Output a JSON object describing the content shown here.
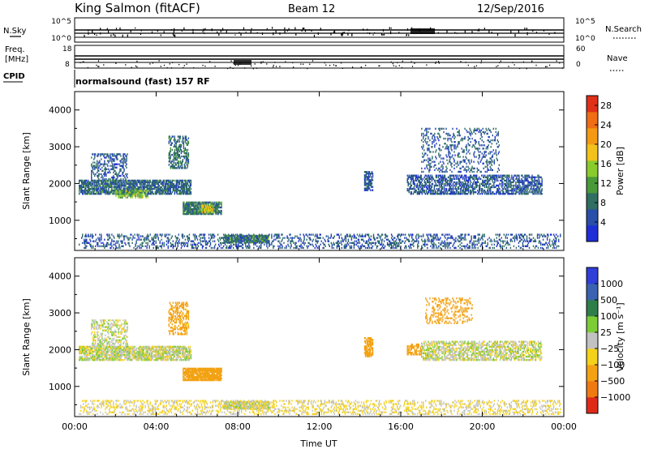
{
  "header": {
    "station": "King Salmon (fitACF)",
    "beam": "Beam 12",
    "date": "12/Sep/2016"
  },
  "left_labels": {
    "nsky": "N.Sky",
    "freq": "Freq.",
    "freq_unit": "[MHz]",
    "cpid": "CPID"
  },
  "right_labels": {
    "nsearch": "N.Search",
    "nave": "Nave"
  },
  "noise_axis": {
    "left_top": "10^5",
    "left_bottom": "10^0",
    "right_top": "10^5",
    "right_bottom": "10^0"
  },
  "freq_axis": {
    "left_top": "18",
    "left_bottom": "8",
    "right_top": "60",
    "right_bottom": "0"
  },
  "cpid_text": "normalsound (fast) 157 RF",
  "colors": {
    "power": [
      "#1e2fd6",
      "#2a4fa8",
      "#2f6e60",
      "#4a9a3a",
      "#8acb2c",
      "#f3c21a",
      "#f39a12",
      "#ef6d14",
      "#e03018"
    ],
    "velocity": [
      "#2f3fd8",
      "#3a62b0",
      "#2f7e4a",
      "#7ccc36",
      "#c2c2c2",
      "#f5d21a",
      "#f3a214",
      "#f07a12",
      "#e02a18"
    ]
  },
  "chart_data": [
    {
      "type": "heatmap",
      "name": "power",
      "xlabel": "",
      "ylabel": "Slant Range [km]",
      "x_ticks": [
        "00:00",
        "04:00",
        "08:00",
        "12:00",
        "16:00",
        "20:00",
        "00:00"
      ],
      "y_ticks": [
        "1000",
        "2000",
        "3000",
        "4000"
      ],
      "ylim": [
        180,
        4500
      ],
      "xlim_hours": [
        0,
        24
      ],
      "colorbar": {
        "label": "Power [dB]",
        "ticks": [
          "4",
          "8",
          "12",
          "16",
          "20",
          "24",
          "28"
        ],
        "range": [
          0,
          30
        ]
      },
      "regions": [
        {
          "t": [
            0.2,
            5.7
          ],
          "r": [
            1700,
            2100
          ],
          "value": 7,
          "density": 0.75,
          "note": "main echo band"
        },
        {
          "t": [
            2.0,
            3.6
          ],
          "r": [
            1600,
            1800
          ],
          "value": 13,
          "density": 0.6
        },
        {
          "t": [
            0.8,
            2.6
          ],
          "r": [
            2100,
            2800
          ],
          "value": 6,
          "density": 0.35
        },
        {
          "t": [
            4.6,
            5.6
          ],
          "r": [
            2400,
            3300
          ],
          "value": 8,
          "density": 0.45
        },
        {
          "t": [
            5.3,
            7.2
          ],
          "r": [
            1150,
            1500
          ],
          "value": 9,
          "density": 0.85
        },
        {
          "t": [
            6.2,
            6.8
          ],
          "r": [
            1200,
            1400
          ],
          "value": 18,
          "density": 0.7
        },
        {
          "t": [
            7.3,
            9.5
          ],
          "r": [
            380,
            600
          ],
          "value": 10,
          "density": 0.8
        },
        {
          "t": [
            14.2,
            14.6
          ],
          "r": [
            1800,
            2300
          ],
          "value": 6,
          "density": 0.7
        },
        {
          "t": [
            16.3,
            22.9
          ],
          "r": [
            1700,
            2200
          ],
          "value": 6,
          "density": 0.55
        },
        {
          "t": [
            17.0,
            20.8
          ],
          "r": [
            2300,
            3500
          ],
          "value": 6,
          "density": 0.2
        },
        {
          "t": [
            0.2,
            23.8
          ],
          "r": [
            230,
            620
          ],
          "value": 6,
          "density": 0.28,
          "note": "near-range ground scatter"
        }
      ]
    },
    {
      "type": "heatmap",
      "name": "velocity",
      "xlabel": "Time UT",
      "ylabel": "Slant Range [km]",
      "x_ticks": [
        "00:00",
        "04:00",
        "08:00",
        "12:00",
        "16:00",
        "20:00",
        "00:00"
      ],
      "y_ticks": [
        "1000",
        "2000",
        "3000",
        "4000"
      ],
      "ylim": [
        180,
        4500
      ],
      "xlim_hours": [
        0,
        24
      ],
      "colorbar": {
        "label": "Velocity [m s⁻¹]",
        "ticks": [
          "1000",
          "500",
          "100",
          "25",
          "−25",
          "−100",
          "−500",
          "−1000"
        ]
      },
      "regions": [
        {
          "t": [
            0.2,
            5.7
          ],
          "r": [
            1700,
            2100
          ],
          "value": 0,
          "density": 0.75
        },
        {
          "t": [
            0.8,
            2.6
          ],
          "r": [
            2100,
            2800
          ],
          "value": 0,
          "density": 0.35
        },
        {
          "t": [
            4.6,
            5.6
          ],
          "r": [
            2400,
            3300
          ],
          "value": -150,
          "density": 0.45
        },
        {
          "t": [
            5.3,
            7.2
          ],
          "r": [
            1150,
            1500
          ],
          "value": -300,
          "density": 0.9
        },
        {
          "t": [
            7.3,
            9.5
          ],
          "r": [
            380,
            600
          ],
          "value": 0,
          "density": 0.8
        },
        {
          "t": [
            14.2,
            14.6
          ],
          "r": [
            1800,
            2300
          ],
          "value": -350,
          "density": 0.7
        },
        {
          "t": [
            16.3,
            17.0
          ],
          "r": [
            1850,
            2150
          ],
          "value": -200,
          "density": 0.6
        },
        {
          "t": [
            17.0,
            22.9
          ],
          "r": [
            1700,
            2200
          ],
          "value": 0,
          "density": 0.55
        },
        {
          "t": [
            17.2,
            19.5
          ],
          "r": [
            2700,
            3400
          ],
          "value": -400,
          "density": 0.25
        },
        {
          "t": [
            0.2,
            23.8
          ],
          "r": [
            230,
            620
          ],
          "value": -40,
          "density": 0.28
        }
      ]
    }
  ]
}
